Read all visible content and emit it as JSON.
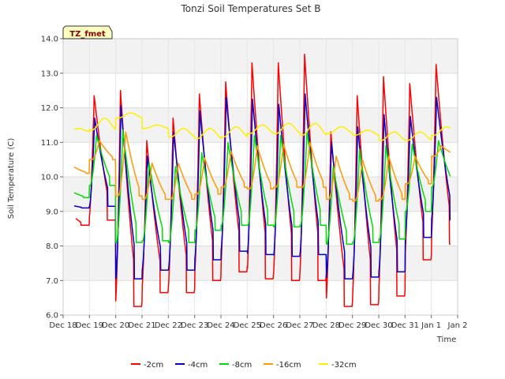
{
  "chart_data": {
    "type": "line",
    "title": "Tonzi Soil Temperatures Set B",
    "xlabel": "Time",
    "ylabel": "Soil Temperature (C)",
    "ylim": [
      6.0,
      14.0
    ],
    "yticks": [
      "6.0",
      "7.0",
      "8.0",
      "9.0",
      "10.0",
      "11.0",
      "12.0",
      "13.0",
      "14.0"
    ],
    "xlim": [
      0,
      15
    ],
    "xtick_labels": [
      "Dec 18",
      "Dec 19",
      "Dec 20",
      "Dec 21",
      "Dec 22",
      "Dec 23",
      "Dec 24",
      "Dec 25",
      "Dec 26",
      "Dec 27",
      "Dec 28",
      "Dec 29",
      "Dec 30",
      "Dec 31",
      "Jan 1",
      "Jan 2"
    ],
    "grid": true,
    "legend_position": "bottom",
    "annotation": "TZ_fmet",
    "series": [
      {
        "name": "-2cm",
        "color": "#ff0000",
        "day_min": [
          8.6,
          8.75,
          6.25,
          6.65,
          6.65,
          7.0,
          7.25,
          7.05,
          7.0,
          7.0,
          6.25,
          6.3,
          6.55,
          7.6,
          8.05
        ],
        "day_max": [
          9.0,
          12.35,
          12.5,
          11.05,
          11.7,
          12.4,
          12.75,
          13.3,
          13.3,
          13.55,
          11.3,
          12.35,
          12.9,
          12.7,
          13.25
        ]
      },
      {
        "name": "-4cm",
        "color": "#0000cc",
        "day_min": [
          9.1,
          9.15,
          7.05,
          7.3,
          7.3,
          7.6,
          7.85,
          7.75,
          7.7,
          7.75,
          7.05,
          7.1,
          7.25,
          8.25,
          8.75
        ],
        "day_max": [
          9.2,
          11.7,
          12.05,
          10.6,
          11.3,
          11.9,
          12.3,
          12.25,
          12.1,
          12.4,
          11.0,
          11.45,
          11.8,
          11.75,
          12.3
        ]
      },
      {
        "name": "-8cm",
        "color": "#00dd00",
        "day_min": [
          9.4,
          9.75,
          8.1,
          8.15,
          8.1,
          8.45,
          8.6,
          8.6,
          8.55,
          8.6,
          8.05,
          8.1,
          8.2,
          9.0,
          9.7
        ],
        "day_max": [
          9.6,
          11.2,
          11.35,
          10.4,
          10.3,
          10.7,
          11.0,
          11.2,
          11.2,
          11.3,
          10.3,
          10.8,
          10.9,
          10.95,
          11.05
        ]
      },
      {
        "name": "-16cm",
        "color": "#ff9900",
        "day_min": [
          10.1,
          10.5,
          9.45,
          9.35,
          9.35,
          9.5,
          9.7,
          9.65,
          9.7,
          9.7,
          9.35,
          9.3,
          9.35,
          9.8,
          10.6
        ],
        "day_max": [
          10.3,
          11.05,
          11.3,
          10.4,
          10.4,
          10.55,
          10.75,
          10.9,
          10.95,
          11.0,
          10.6,
          10.5,
          10.6,
          10.6,
          10.9
        ]
      },
      {
        "name": "-32cm",
        "color": "#ffee00",
        "day_min": [
          11.3,
          11.35,
          11.7,
          11.4,
          11.15,
          11.1,
          11.15,
          11.25,
          11.25,
          11.2,
          11.25,
          11.2,
          11.05,
          11.05,
          11.2
        ],
        "day_max": [
          11.4,
          11.7,
          11.85,
          11.5,
          11.4,
          11.4,
          11.45,
          11.5,
          11.55,
          11.55,
          11.45,
          11.35,
          11.3,
          11.3,
          11.45
        ]
      }
    ]
  }
}
